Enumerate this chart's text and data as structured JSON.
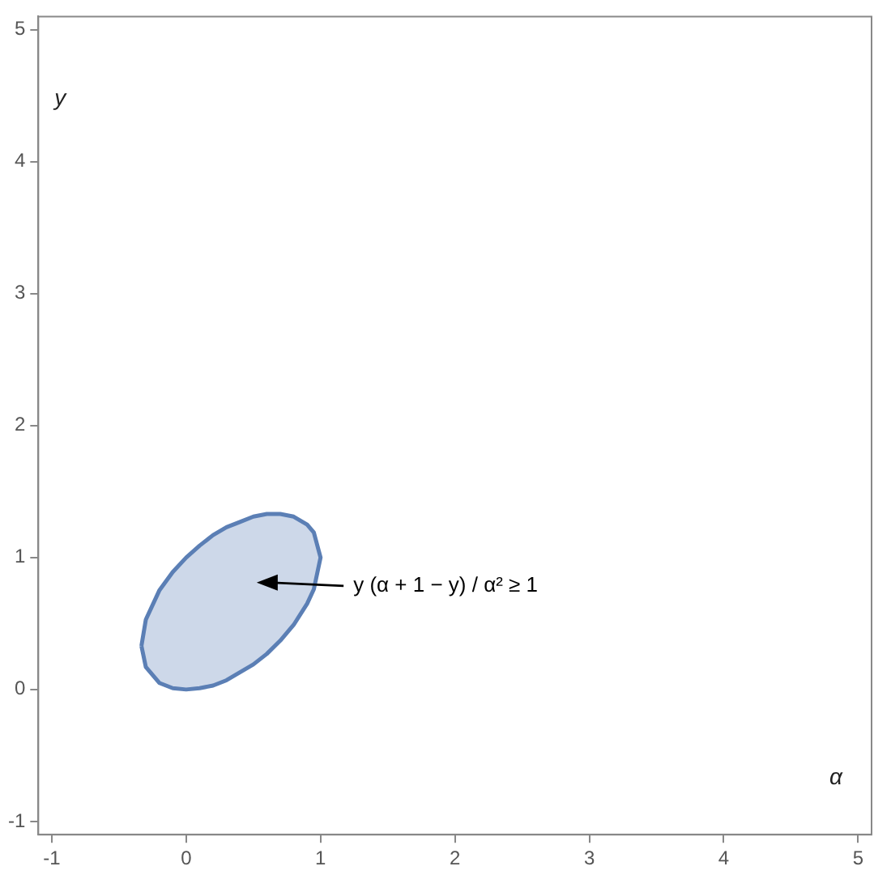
{
  "chart_data": {
    "type": "area",
    "xlabel": "α",
    "ylabel": "y",
    "xlim": [
      -1.1,
      5.1
    ],
    "ylim": [
      -1.1,
      5.1
    ],
    "xticks": [
      -1,
      0,
      1,
      2,
      3,
      4,
      5
    ],
    "yticks": [
      -1,
      0,
      1,
      2,
      3,
      4,
      5
    ],
    "grid": false,
    "legend": false,
    "marker": "none",
    "series": [
      {
        "color": "#5b7fb5",
        "x": [
          -0.333,
          -0.3,
          -0.2,
          -0.1,
          0,
          0.1,
          0.2,
          0.3,
          0.4,
          0.5,
          0.6,
          0.7,
          0.8,
          0.9,
          0.95,
          1.0,
          0.95,
          0.9,
          0.8,
          0.7,
          0.6,
          0.5,
          0.4,
          0.3,
          0.2,
          0.1,
          0,
          -0.1,
          -0.2,
          -0.3,
          -0.333
        ],
        "values": [
          0.33,
          0.53,
          0.75,
          0.89,
          1.0,
          1.09,
          1.17,
          1.23,
          1.27,
          1.31,
          1.33,
          1.33,
          1.31,
          1.25,
          1.19,
          1.0,
          0.76,
          0.65,
          0.49,
          0.37,
          0.27,
          0.19,
          0.13,
          0.07,
          0.03,
          0.01,
          0.0,
          0.01,
          0.05,
          0.17,
          0.33
        ]
      }
    ],
    "annotations": [
      "y (α + 1 − y) / α² ≥ 1"
    ]
  }
}
